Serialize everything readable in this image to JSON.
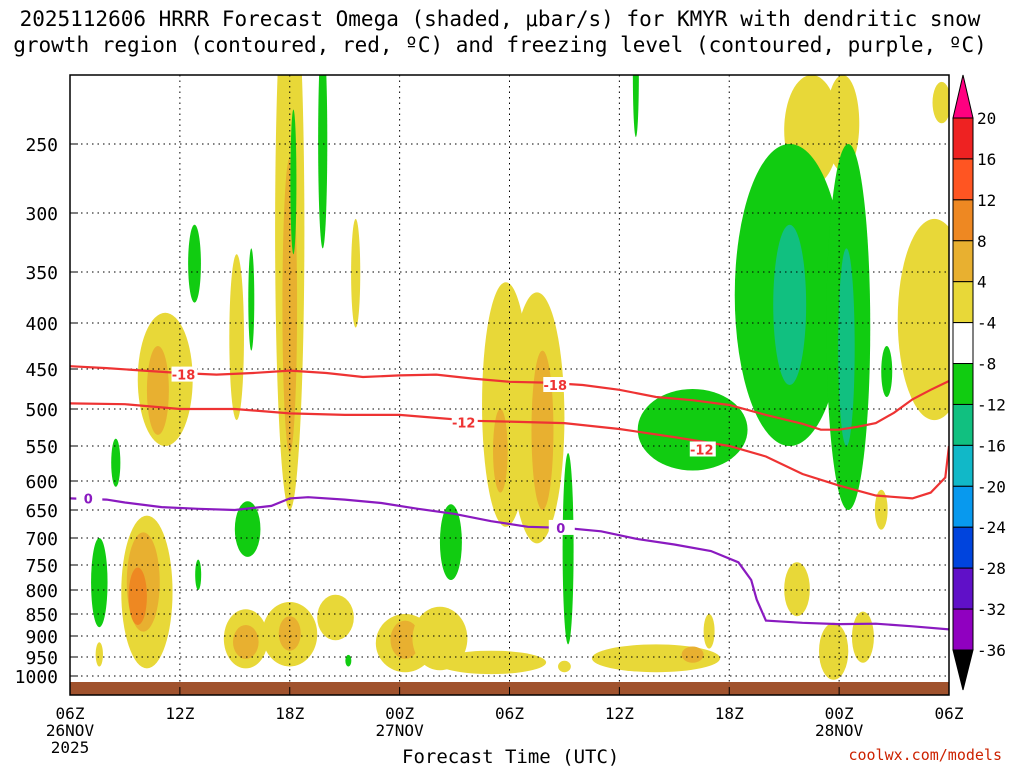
{
  "chart_data": {
    "type": "contour",
    "title_line1": "2025112606 HRRR Forecast Omega (shaded, μbar/s) for KMYR with dendritic snow",
    "title_line2": "growth region (contoured, red, ºC) and freezing level (contoured, purple, ºC)",
    "xlabel": "Forecast Time (UTC)",
    "credit": "coolwx.com/models",
    "x_ticks": [
      {
        "h": 0,
        "label": "06Z",
        "day": "26NOV",
        "year": "2025"
      },
      {
        "h": 6,
        "label": "12Z"
      },
      {
        "h": 12,
        "label": "18Z"
      },
      {
        "h": 18,
        "label": "00Z",
        "day": "27NOV"
      },
      {
        "h": 24,
        "label": "06Z"
      },
      {
        "h": 30,
        "label": "12Z"
      },
      {
        "h": 36,
        "label": "18Z"
      },
      {
        "h": 42,
        "label": "00Z",
        "day": "28NOV"
      },
      {
        "h": 48,
        "label": "06Z"
      }
    ],
    "y_ticks": [
      "250",
      "300",
      "350",
      "400",
      "450",
      "500",
      "550",
      "600",
      "650",
      "700",
      "750",
      "800",
      "850",
      "900",
      "950",
      "1000"
    ],
    "y_tick_values": [
      250,
      300,
      350,
      400,
      450,
      500,
      550,
      600,
      650,
      700,
      750,
      800,
      850,
      900,
      950,
      1000
    ],
    "xlim": [
      0,
      48
    ],
    "colorbar": {
      "labels": [
        "20",
        "16",
        "12",
        "8",
        "4",
        "-4",
        "-8",
        "-12",
        "-16",
        "-20",
        "-24",
        "-28",
        "-32",
        "-36"
      ],
      "colors": [
        "#ff0080",
        "#ee2222",
        "#ff5522",
        "#ee8822",
        "#e8b030",
        "#e8d838",
        "#ffffff",
        "#11cc11",
        "#11c080",
        "#11b8c8",
        "#0899ee",
        "#0044dd",
        "#6010c8",
        "#9000c0",
        "#a0a0a0",
        "#000000"
      ]
    },
    "contours": [
      {
        "name": "-18",
        "color": "#ee3333",
        "label": "-18",
        "label_positions": [
          [
            6.2,
            457
          ],
          [
            26.5,
            470
          ]
        ],
        "points": [
          [
            0,
            447
          ],
          [
            2,
            449
          ],
          [
            4,
            452
          ],
          [
            6,
            455
          ],
          [
            8,
            457
          ],
          [
            10,
            455
          ],
          [
            12,
            452
          ],
          [
            14,
            455
          ],
          [
            16,
            460
          ],
          [
            18,
            458
          ],
          [
            20,
            457
          ],
          [
            22,
            462
          ],
          [
            24,
            466
          ],
          [
            26,
            467
          ],
          [
            28,
            470
          ],
          [
            30,
            476
          ],
          [
            32,
            485
          ],
          [
            34,
            489
          ],
          [
            36,
            495
          ],
          [
            38,
            508
          ],
          [
            40,
            520
          ],
          [
            41,
            528
          ],
          [
            42,
            528
          ],
          [
            43,
            524
          ],
          [
            44,
            519
          ],
          [
            45,
            505
          ],
          [
            46,
            488
          ],
          [
            47,
            476
          ],
          [
            48,
            465
          ]
        ]
      },
      {
        "name": "-12",
        "color": "#ee3333",
        "label": "-12",
        "label_positions": [
          [
            21.5,
            518
          ],
          [
            34.5,
            555
          ]
        ],
        "points": [
          [
            0,
            493
          ],
          [
            3,
            494
          ],
          [
            6,
            500
          ],
          [
            9,
            500
          ],
          [
            12,
            506
          ],
          [
            15,
            508
          ],
          [
            18,
            508
          ],
          [
            20,
            512
          ],
          [
            22,
            516
          ],
          [
            24,
            517
          ],
          [
            27,
            519
          ],
          [
            30,
            527
          ],
          [
            33,
            538
          ],
          [
            36,
            550
          ],
          [
            38,
            565
          ],
          [
            40,
            590
          ],
          [
            42,
            608
          ],
          [
            44,
            625
          ],
          [
            46,
            630
          ],
          [
            47,
            620
          ],
          [
            47.8,
            595
          ],
          [
            48,
            550
          ]
        ]
      },
      {
        "name": "0",
        "color": "#8a1ac0",
        "label": "0",
        "label_positions": [
          [
            1,
            630
          ],
          [
            26.8,
            682
          ]
        ],
        "points": [
          [
            0,
            630
          ],
          [
            2,
            632
          ],
          [
            3,
            637
          ],
          [
            5,
            645
          ],
          [
            7,
            648
          ],
          [
            9,
            650
          ],
          [
            11,
            643
          ],
          [
            12,
            630
          ],
          [
            13,
            628
          ],
          [
            15,
            632
          ],
          [
            17,
            638
          ],
          [
            19,
            648
          ],
          [
            21,
            657
          ],
          [
            23,
            670
          ],
          [
            25,
            680
          ],
          [
            27,
            682
          ],
          [
            29,
            688
          ],
          [
            31,
            702
          ],
          [
            33,
            712
          ],
          [
            35,
            724
          ],
          [
            36.5,
            745
          ],
          [
            37.2,
            780
          ],
          [
            37.5,
            820
          ],
          [
            38,
            865
          ],
          [
            40,
            870
          ],
          [
            42,
            873
          ],
          [
            44,
            872
          ],
          [
            46,
            878
          ],
          [
            48,
            885
          ]
        ]
      }
    ],
    "omega_blobs": [
      {
        "c": 4,
        "x": 1.6,
        "y": 945,
        "rx": 0.2,
        "ry": 30
      },
      {
        "c": 4,
        "x": 4.2,
        "y": 820,
        "rx": 1.4,
        "ry": 160
      },
      {
        "c": 8,
        "x": 4.0,
        "y": 790,
        "rx": 0.9,
        "ry": 100
      },
      {
        "c": 12,
        "x": 3.7,
        "y": 815,
        "rx": 0.5,
        "ry": 60
      },
      {
        "c": 4,
        "x": 5.2,
        "y": 470,
        "rx": 1.5,
        "ry": 80
      },
      {
        "c": 8,
        "x": 4.8,
        "y": 480,
        "rx": 0.6,
        "ry": 55
      },
      {
        "c": 4,
        "x": 1.5,
        "y": 600,
        "rx": 0,
        "ry": 0
      },
      {
        "c": 4,
        "x": 12.0,
        "y": 380,
        "rx": 0.8,
        "ry": 270
      },
      {
        "c": 8,
        "x": 12.0,
        "y": 410,
        "rx": 0.4,
        "ry": 150
      },
      {
        "c": 4,
        "x": 9.1,
        "y": 425,
        "rx": 0.4,
        "ry": 90
      },
      {
        "c": 4,
        "x": 15.6,
        "y": 355,
        "rx": 0.25,
        "ry": 50
      },
      {
        "c": 4,
        "x": 2.3,
        "y": 930,
        "rx": 0,
        "ry": 0
      },
      {
        "c": 4,
        "x": 2.4,
        "y": 925,
        "rx": 0,
        "ry": 0
      },
      {
        "c": 4,
        "x": 9.6,
        "y": 910,
        "rx": 1.2,
        "ry": 70
      },
      {
        "c": 8,
        "x": 9.6,
        "y": 915,
        "rx": 0.7,
        "ry": 40
      },
      {
        "c": 4,
        "x": 12.0,
        "y": 900,
        "rx": 1.5,
        "ry": 75
      },
      {
        "c": 8,
        "x": 12.0,
        "y": 895,
        "rx": 0.6,
        "ry": 40
      },
      {
        "c": 4,
        "x": 14.5,
        "y": 860,
        "rx": 1.0,
        "ry": 50
      },
      {
        "c": 4,
        "x": 18.3,
        "y": 920,
        "rx": 1.6,
        "ry": 70
      },
      {
        "c": 8,
        "x": 18.3,
        "y": 910,
        "rx": 0.8,
        "ry": 45
      },
      {
        "c": 4,
        "x": 20.2,
        "y": 910,
        "rx": 1.5,
        "ry": 75
      },
      {
        "c": 4,
        "x": 23.0,
        "y": 965,
        "rx": 3.0,
        "ry": 30
      },
      {
        "c": 4,
        "x": 23.8,
        "y": 520,
        "rx": 1.3,
        "ry": 160
      },
      {
        "c": 8,
        "x": 23.5,
        "y": 560,
        "rx": 0.4,
        "ry": 60
      },
      {
        "c": 4,
        "x": 25.5,
        "y": 540,
        "rx": 1.5,
        "ry": 170
      },
      {
        "c": 8,
        "x": 25.8,
        "y": 540,
        "rx": 0.6,
        "ry": 110
      },
      {
        "c": 4,
        "x": 27.0,
        "y": 975,
        "rx": 0.35,
        "ry": 15
      },
      {
        "c": 4,
        "x": 32.0,
        "y": 955,
        "rx": 3.5,
        "ry": 35
      },
      {
        "c": 8,
        "x": 34.0,
        "y": 945,
        "rx": 0.6,
        "ry": 20
      },
      {
        "c": 4,
        "x": 34.9,
        "y": 890,
        "rx": 0.3,
        "ry": 40
      },
      {
        "c": 4,
        "x": 39.7,
        "y": 800,
        "rx": 0.7,
        "ry": 55
      },
      {
        "c": 4,
        "x": 41.7,
        "y": 940,
        "rx": 0.8,
        "ry": 70
      },
      {
        "c": 4,
        "x": 43.3,
        "y": 905,
        "rx": 0.6,
        "ry": 60
      },
      {
        "c": 4,
        "x": 44.3,
        "y": 650,
        "rx": 0.35,
        "ry": 35
      },
      {
        "c": 4,
        "x": 42.2,
        "y": 235,
        "rx": 0.9,
        "ry": 35
      },
      {
        "c": 4,
        "x": 40.5,
        "y": 240,
        "rx": 1.5,
        "ry": 40
      },
      {
        "c": 4,
        "x": 47.2,
        "y": 410,
        "rx": 2.0,
        "ry": 105
      },
      {
        "c": 4,
        "x": 47.6,
        "y": 220,
        "rx": 0.5,
        "ry": 15
      },
      {
        "c": -4,
        "x": 1.6,
        "y": 790,
        "rx": 0.45,
        "ry": 90
      },
      {
        "c": -4,
        "x": 2.5,
        "y": 575,
        "rx": 0.25,
        "ry": 35
      },
      {
        "c": -4,
        "x": 6.8,
        "y": 345,
        "rx": 0.35,
        "ry": 35
      },
      {
        "c": -4,
        "x": 7.0,
        "y": 770,
        "rx": 0.15,
        "ry": 30
      },
      {
        "c": -4,
        "x": 9.9,
        "y": 380,
        "rx": 0.15,
        "ry": 50
      },
      {
        "c": -4,
        "x": 9.7,
        "y": 685,
        "rx": 0.7,
        "ry": 50
      },
      {
        "c": -4,
        "x": 12.2,
        "y": 280,
        "rx": 0.15,
        "ry": 55
      },
      {
        "c": -4,
        "x": 13.8,
        "y": 250,
        "rx": 0.25,
        "ry": 80
      },
      {
        "c": -4,
        "x": 15.2,
        "y": 960,
        "rx": 0.15,
        "ry": 15
      },
      {
        "c": -4,
        "x": 20.8,
        "y": 710,
        "rx": 0.6,
        "ry": 70
      },
      {
        "c": -4,
        "x": 27.2,
        "y": 740,
        "rx": 0.3,
        "ry": 180
      },
      {
        "c": -4,
        "x": 30.9,
        "y": 200,
        "rx": 0.15,
        "ry": 45
      },
      {
        "c": -4,
        "x": 34.0,
        "y": 530,
        "rx": 3.0,
        "ry": 55
      },
      {
        "c": -4,
        "x": 39.3,
        "y": 400,
        "rx": 3.0,
        "ry": 150
      },
      {
        "c": -8,
        "x": 39.3,
        "y": 390,
        "rx": 0.9,
        "ry": 80
      },
      {
        "c": -4,
        "x": 42.5,
        "y": 450,
        "rx": 1.2,
        "ry": 200
      },
      {
        "c": -8,
        "x": 42.4,
        "y": 440,
        "rx": 0.45,
        "ry": 110
      },
      {
        "c": -4,
        "x": 44.6,
        "y": 455,
        "rx": 0.3,
        "ry": 30
      }
    ]
  }
}
